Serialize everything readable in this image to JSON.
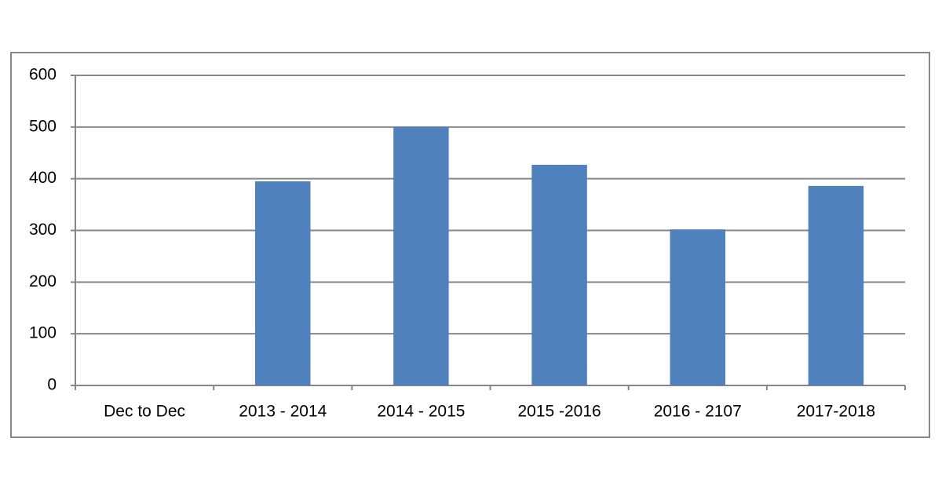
{
  "chart_data": {
    "type": "bar",
    "categories": [
      "Dec to Dec",
      "2013 - 2014",
      "2014 - 2015",
      "2015 -2016",
      "2016 - 2107",
      "2017-2018"
    ],
    "values": [
      null,
      395,
      500,
      427,
      302,
      386
    ],
    "color": "#4f81bd",
    "ylim": [
      0,
      600
    ],
    "yticks": [
      0,
      100,
      200,
      300,
      400,
      500,
      600
    ],
    "grid": true
  }
}
